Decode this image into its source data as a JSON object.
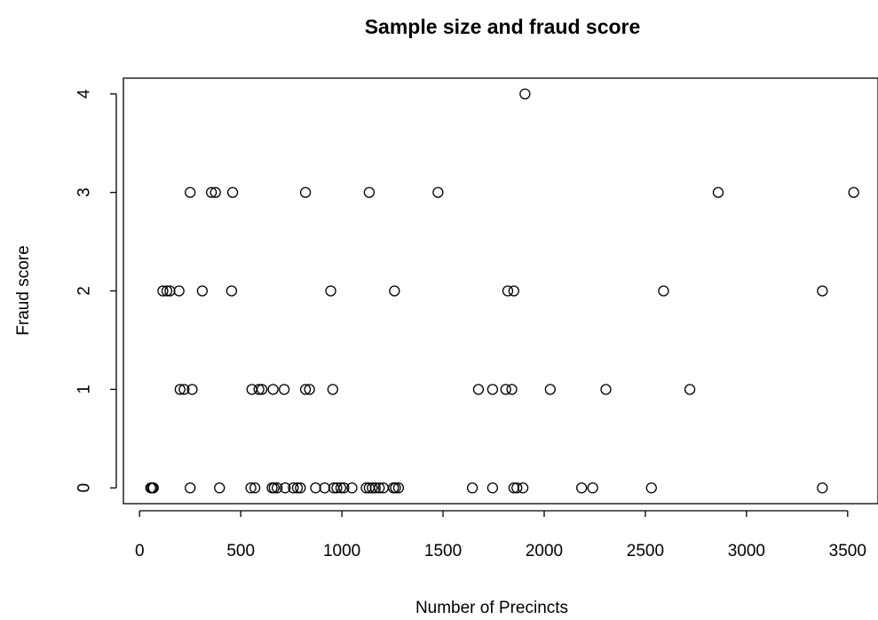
{
  "chart_data": {
    "type": "scatter",
    "title": "Sample size and fraud score",
    "xlabel": "Number of Precincts",
    "ylabel": "Fraud score",
    "xlim": [
      -80,
      3650
    ],
    "ylim": [
      -0.16,
      4.16
    ],
    "xticks": [
      0,
      500,
      1000,
      1500,
      2000,
      2500,
      3000,
      3500
    ],
    "yticks": [
      0,
      1,
      2,
      3,
      4
    ],
    "grid": false,
    "marker": "open-circle",
    "points": [
      {
        "x": 55,
        "y": 0
      },
      {
        "x": 62,
        "y": 0
      },
      {
        "x": 68,
        "y": 0
      },
      {
        "x": 250,
        "y": 0
      },
      {
        "x": 395,
        "y": 0
      },
      {
        "x": 550,
        "y": 0
      },
      {
        "x": 570,
        "y": 0
      },
      {
        "x": 655,
        "y": 0
      },
      {
        "x": 665,
        "y": 0
      },
      {
        "x": 680,
        "y": 0
      },
      {
        "x": 720,
        "y": 0
      },
      {
        "x": 760,
        "y": 0
      },
      {
        "x": 780,
        "y": 0
      },
      {
        "x": 795,
        "y": 0
      },
      {
        "x": 870,
        "y": 0
      },
      {
        "x": 915,
        "y": 0
      },
      {
        "x": 960,
        "y": 0
      },
      {
        "x": 975,
        "y": 0
      },
      {
        "x": 995,
        "y": 0
      },
      {
        "x": 1010,
        "y": 0
      },
      {
        "x": 1050,
        "y": 0
      },
      {
        "x": 1120,
        "y": 0
      },
      {
        "x": 1135,
        "y": 0
      },
      {
        "x": 1150,
        "y": 0
      },
      {
        "x": 1165,
        "y": 0
      },
      {
        "x": 1185,
        "y": 0
      },
      {
        "x": 1205,
        "y": 0
      },
      {
        "x": 1255,
        "y": 0
      },
      {
        "x": 1265,
        "y": 0
      },
      {
        "x": 1280,
        "y": 0
      },
      {
        "x": 1645,
        "y": 0
      },
      {
        "x": 1745,
        "y": 0
      },
      {
        "x": 1850,
        "y": 0
      },
      {
        "x": 1865,
        "y": 0
      },
      {
        "x": 1895,
        "y": 0
      },
      {
        "x": 2185,
        "y": 0
      },
      {
        "x": 2240,
        "y": 0
      },
      {
        "x": 2530,
        "y": 0
      },
      {
        "x": 3375,
        "y": 0
      },
      {
        "x": 200,
        "y": 1
      },
      {
        "x": 220,
        "y": 1
      },
      {
        "x": 260,
        "y": 1
      },
      {
        "x": 555,
        "y": 1
      },
      {
        "x": 590,
        "y": 1
      },
      {
        "x": 605,
        "y": 1
      },
      {
        "x": 660,
        "y": 1
      },
      {
        "x": 715,
        "y": 1
      },
      {
        "x": 820,
        "y": 1
      },
      {
        "x": 840,
        "y": 1
      },
      {
        "x": 955,
        "y": 1
      },
      {
        "x": 1675,
        "y": 1
      },
      {
        "x": 1745,
        "y": 1
      },
      {
        "x": 1810,
        "y": 1
      },
      {
        "x": 1840,
        "y": 1
      },
      {
        "x": 2030,
        "y": 1
      },
      {
        "x": 2305,
        "y": 1
      },
      {
        "x": 2720,
        "y": 1
      },
      {
        "x": 115,
        "y": 2
      },
      {
        "x": 135,
        "y": 2
      },
      {
        "x": 150,
        "y": 2
      },
      {
        "x": 195,
        "y": 2
      },
      {
        "x": 310,
        "y": 2
      },
      {
        "x": 455,
        "y": 2
      },
      {
        "x": 945,
        "y": 2
      },
      {
        "x": 1260,
        "y": 2
      },
      {
        "x": 1820,
        "y": 2
      },
      {
        "x": 1850,
        "y": 2
      },
      {
        "x": 2590,
        "y": 2
      },
      {
        "x": 3375,
        "y": 2
      },
      {
        "x": 250,
        "y": 3
      },
      {
        "x": 355,
        "y": 3
      },
      {
        "x": 375,
        "y": 3
      },
      {
        "x": 460,
        "y": 3
      },
      {
        "x": 820,
        "y": 3
      },
      {
        "x": 1135,
        "y": 3
      },
      {
        "x": 1475,
        "y": 3
      },
      {
        "x": 2860,
        "y": 3
      },
      {
        "x": 3530,
        "y": 3
      },
      {
        "x": 1905,
        "y": 4
      }
    ]
  }
}
